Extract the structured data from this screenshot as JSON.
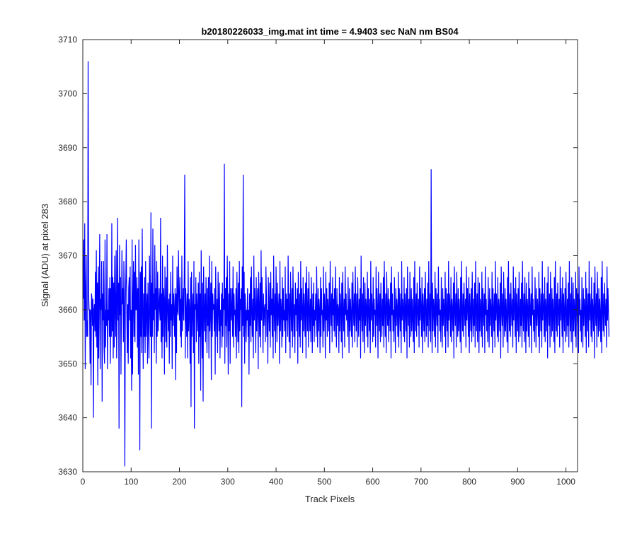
{
  "chart_data": {
    "type": "line",
    "title": "b20180226033_img.mat int time = 4.9403 sec  NaN nm BS04",
    "xlabel": "Track Pixels",
    "ylabel": "Signal (ADU) at pixel 283",
    "xlim": [
      0,
      1024
    ],
    "ylim": [
      3630,
      3710
    ],
    "xticks": [
      0,
      100,
      200,
      300,
      400,
      500,
      600,
      700,
      800,
      900,
      1000
    ],
    "yticks": [
      3630,
      3640,
      3650,
      3660,
      3670,
      3680,
      3690,
      3700,
      3710
    ],
    "grid": false,
    "series": [
      {
        "color": "#0000ff",
        "x_start": 1,
        "x_step": 1,
        "values": [
          3662,
          3673,
          3658,
          3676,
          3649,
          3663,
          3670,
          3655,
          3658,
          3655,
          3706,
          3663,
          3660,
          3660,
          3650,
          3660,
          3646,
          3663,
          3662,
          3657,
          3662,
          3640,
          3660,
          3661,
          3656,
          3667,
          3655,
          3671,
          3653,
          3665,
          3646,
          3668,
          3651,
          3664,
          3674,
          3649,
          3662,
          3660,
          3669,
          3643,
          3663,
          3658,
          3669,
          3653,
          3650,
          3673,
          3653,
          3660,
          3657,
          3674,
          3649,
          3660,
          3658,
          3664,
          3655,
          3666,
          3650,
          3664,
          3655,
          3676,
          3656,
          3666,
          3651,
          3665,
          3653,
          3670,
          3660,
          3655,
          3671,
          3651,
          3660,
          3677,
          3658,
          3665,
          3638,
          3672,
          3659,
          3666,
          3648,
          3660,
          3671,
          3661,
          3664,
          3654,
          3669,
          3662,
          3631,
          3660,
          3666,
          3673,
          3660,
          3652,
          3661,
          3650,
          3664,
          3666,
          3658,
          3668,
          3651,
          3660,
          3645,
          3673,
          3648,
          3661,
          3669,
          3655,
          3667,
          3654,
          3672,
          3660,
          3660,
          3666,
          3653,
          3664,
          3648,
          3673,
          3660,
          3634,
          3667,
          3655,
          3668,
          3652,
          3675,
          3660,
          3649,
          3663,
          3655,
          3666,
          3652,
          3669,
          3655,
          3660,
          3663,
          3650,
          3665,
          3657,
          3651,
          3670,
          3660,
          3655,
          3678,
          3638,
          3665,
          3655,
          3675,
          3658,
          3663,
          3652,
          3672,
          3660,
          3664,
          3650,
          3669,
          3655,
          3667,
          3656,
          3660,
          3664,
          3660,
          3658,
          3677,
          3654,
          3663,
          3651,
          3670,
          3655,
          3664,
          3662,
          3648,
          3668,
          3660,
          3654,
          3666,
          3653,
          3672,
          3660,
          3656,
          3662,
          3650,
          3663,
          3655,
          3667,
          3658,
          3661,
          3649,
          3670,
          3657,
          3663,
          3660,
          3655,
          3664,
          3647,
          3663,
          3652,
          3668,
          3660,
          3659,
          3671,
          3663,
          3658,
          3666,
          3655,
          3662,
          3653,
          3670,
          3656,
          3660,
          3664,
          3658,
          3667,
          3685,
          3651,
          3664,
          3660,
          3655,
          3663,
          3651,
          3669,
          3656,
          3662,
          3660,
          3650,
          3666,
          3642,
          3667,
          3655,
          3660,
          3663,
          3652,
          3669,
          3638,
          3661,
          3660,
          3666,
          3654,
          3663,
          3660,
          3656,
          3665,
          3650,
          3667,
          3655,
          3663,
          3645,
          3671,
          3659,
          3651,
          3665,
          3643,
          3668,
          3660,
          3656,
          3663,
          3654,
          3666,
          3660,
          3652,
          3664,
          3657,
          3666,
          3651,
          3670,
          3656,
          3660,
          3665,
          3647,
          3669,
          3655,
          3663,
          3660,
          3661,
          3656,
          3664,
          3648,
          3668,
          3660,
          3655,
          3662,
          3652,
          3667,
          3660,
          3656,
          3665,
          3651,
          3660,
          3657,
          3663,
          3653,
          3665,
          3655,
          3662,
          3660,
          3687,
          3650,
          3664,
          3657,
          3666,
          3653,
          3670,
          3660,
          3648,
          3663,
          3656,
          3669,
          3650,
          3664,
          3660,
          3658,
          3664,
          3655,
          3668,
          3653,
          3663,
          3659,
          3660,
          3655,
          3664,
          3651,
          3667,
          3660,
          3654,
          3665,
          3652,
          3669,
          3656,
          3662,
          3660,
          3664,
          3642,
          3668,
          3657,
          3685,
          3655,
          3667,
          3650,
          3663,
          3660,
          3654,
          3660,
          3658,
          3664,
          3655,
          3660,
          3648,
          3663,
          3657,
          3666,
          3654,
          3668,
          3660,
          3655,
          3662,
          3651,
          3670,
          3658,
          3664,
          3660,
          3652,
          3666,
          3656,
          3661,
          3664,
          3649,
          3667,
          3660,
          3655,
          3665,
          3653,
          3671,
          3658,
          3666,
          3660,
          3652,
          3663,
          3657,
          3660,
          3661,
          3654,
          3668,
          3663,
          3655,
          3660,
          3650,
          3666,
          3660,
          3656,
          3665,
          3653,
          3667,
          3659,
          3662,
          3655,
          3664,
          3651,
          3670,
          3660,
          3656,
          3663,
          3652,
          3668,
          3660,
          3654,
          3665,
          3657,
          3660,
          3663,
          3650,
          3669,
          3656,
          3662,
          3660,
          3653,
          3666,
          3655,
          3664,
          3658,
          3660,
          3656,
          3668,
          3652,
          3663,
          3658,
          3662,
          3655,
          3670,
          3660,
          3654,
          3663,
          3651,
          3667,
          3660,
          3656,
          3664,
          3653,
          3668,
          3660,
          3655,
          3661,
          3652,
          3665,
          3659,
          3662,
          3656,
          3664,
          3650,
          3667,
          3660,
          3655,
          3663,
          3653,
          3669,
          3658,
          3664,
          3660,
          3652,
          3666,
          3656,
          3663,
          3660,
          3655,
          3665,
          3651,
          3668,
          3660,
          3656,
          3664,
          3653,
          3667,
          3660,
          3656,
          3662,
          3654,
          3666,
          3660,
          3652,
          3663,
          3657,
          3665,
          3654,
          3660,
          3658,
          3663,
          3655,
          3668,
          3660,
          3653,
          3664,
          3656,
          3662,
          3660,
          3652,
          3666,
          3655,
          3664,
          3659,
          3660,
          3653,
          3668,
          3656,
          3663,
          3660,
          3651,
          3667,
          3658,
          3664,
          3655,
          3662,
          3660,
          3656,
          3665,
          3652,
          3669,
          3660,
          3657,
          3663,
          3654,
          3666,
          3659,
          3662,
          3656,
          3664,
          3655,
          3668,
          3660,
          3653,
          3664,
          3657,
          3661,
          3660,
          3652,
          3666,
          3656,
          3663,
          3660,
          3654,
          3665,
          3651,
          3667,
          3660,
          3656,
          3662,
          3653,
          3668,
          3659,
          3663,
          3658,
          3660,
          3655,
          3666,
          3660,
          3652,
          3664,
          3656,
          3662,
          3659,
          3655,
          3665,
          3653,
          3667,
          3660,
          3657,
          3663,
          3654,
          3668,
          3660,
          3656,
          3663,
          3653,
          3666,
          3660,
          3655,
          3662,
          3658,
          3664,
          3651,
          3670,
          3660,
          3656,
          3663,
          3654,
          3666,
          3660,
          3652,
          3665,
          3657,
          3662,
          3660,
          3655,
          3667,
          3653,
          3664,
          3660,
          3656,
          3662,
          3652,
          3669,
          3658,
          3663,
          3660,
          3654,
          3666,
          3655,
          3662,
          3659,
          3660,
          3653,
          3668,
          3657,
          3664,
          3660,
          3651,
          3667,
          3660,
          3656,
          3663,
          3654,
          3665,
          3660,
          3655,
          3662,
          3657,
          3666,
          3653,
          3669,
          3660,
          3655,
          3663,
          3652,
          3667,
          3660,
          3657,
          3664,
          3654,
          3662,
          3660,
          3656,
          3665,
          3651,
          3668,
          3659,
          3663,
          3656,
          3660,
          3654,
          3666,
          3660,
          3652,
          3664,
          3657,
          3662,
          3660,
          3655,
          3667,
          3653,
          3664,
          3660,
          3656,
          3663,
          3652,
          3669,
          3658,
          3662,
          3660,
          3655,
          3666,
          3654,
          3663,
          3660,
          3656,
          3664,
          3651,
          3668,
          3660,
          3657,
          3662,
          3653,
          3667,
          3660,
          3655,
          3664,
          3656,
          3662,
          3659,
          3654,
          3666,
          3652,
          3669,
          3660,
          3656,
          3663,
          3655,
          3665,
          3660,
          3657,
          3662,
          3653,
          3668,
          3658,
          3664,
          3660,
          3655,
          3666,
          3652,
          3663,
          3660,
          3656,
          3664,
          3654,
          3667,
          3660,
          3655,
          3662,
          3657,
          3665,
          3653,
          3669,
          3660,
          3656,
          3663,
          3654,
          3686,
          3660,
          3652,
          3665,
          3656,
          3662,
          3660,
          3655,
          3667,
          3653,
          3664,
          3660,
          3657,
          3663,
          3652,
          3668,
          3659,
          3662,
          3656,
          3660,
          3654,
          3666,
          3660,
          3653,
          3664,
          3657,
          3662,
          3660,
          3655,
          3667,
          3652,
          3664,
          3660,
          3656,
          3663,
          3653,
          3669,
          3658,
          3663,
          3660,
          3655,
          3666,
          3654,
          3662,
          3660,
          3656,
          3665,
          3651,
          3668,
          3660,
          3657,
          3663,
          3653,
          3667,
          3660,
          3655,
          3664,
          3656,
          3662,
          3659,
          3654,
          3666,
          3652,
          3669,
          3660,
          3656,
          3663,
          3655,
          3665,
          3660,
          3657,
          3662,
          3653,
          3668,
          3658,
          3664,
          3660,
          3655,
          3666,
          3652,
          3663,
          3660,
          3656,
          3664,
          3654,
          3667,
          3660,
          3655,
          3662,
          3657,
          3665,
          3653,
          3669,
          3660,
          3656,
          3663,
          3654,
          3666,
          3660,
          3652,
          3665,
          3656,
          3662,
          3660,
          3655,
          3667,
          3653,
          3664,
          3660,
          3657,
          3663,
          3652,
          3668,
          3659,
          3662,
          3656,
          3660,
          3654,
          3666,
          3660,
          3653,
          3664,
          3657,
          3662,
          3660,
          3655,
          3667,
          3652,
          3664,
          3660,
          3656,
          3663,
          3653,
          3669,
          3658,
          3663,
          3660,
          3655,
          3666,
          3654,
          3662,
          3660,
          3656,
          3665,
          3651,
          3668,
          3660,
          3657,
          3663,
          3653,
          3667,
          3660,
          3655,
          3664,
          3656,
          3662,
          3659,
          3654,
          3666,
          3652,
          3669,
          3660,
          3656,
          3663,
          3655,
          3665,
          3660,
          3657,
          3662,
          3653,
          3668,
          3658,
          3664,
          3660,
          3655,
          3666,
          3652,
          3663,
          3660,
          3656,
          3664,
          3654,
          3667,
          3660,
          3655,
          3662,
          3657,
          3665,
          3653,
          3669,
          3660,
          3656,
          3663,
          3654,
          3666,
          3660,
          3652,
          3665,
          3656,
          3662,
          3660,
          3655,
          3667,
          3653,
          3664,
          3660,
          3657,
          3663,
          3652,
          3668,
          3659,
          3662,
          3656,
          3660,
          3654,
          3666,
          3660,
          3653,
          3664,
          3657,
          3662,
          3660,
          3655,
          3667,
          3652,
          3664,
          3660,
          3656,
          3663,
          3653,
          3669,
          3658,
          3663,
          3660,
          3655,
          3666,
          3654,
          3662,
          3660,
          3656,
          3665,
          3651,
          3668,
          3660,
          3657,
          3663,
          3653,
          3667,
          3660,
          3655,
          3664,
          3656,
          3662,
          3659,
          3654,
          3666,
          3652,
          3669,
          3660,
          3656,
          3663,
          3655,
          3665,
          3660,
          3657,
          3662,
          3653,
          3668,
          3658,
          3664,
          3660,
          3655,
          3666,
          3652,
          3663,
          3660,
          3656,
          3664,
          3654,
          3667,
          3660,
          3655,
          3662,
          3657,
          3665,
          3653,
          3669,
          3660,
          3656,
          3663,
          3654,
          3666,
          3660,
          3652,
          3665,
          3656,
          3662,
          3660,
          3655,
          3667,
          3653,
          3664,
          3660,
          3657,
          3663,
          3652,
          3668,
          3659,
          3662,
          3656,
          3660,
          3654,
          3666,
          3660,
          3653,
          3664,
          3657,
          3662,
          3660,
          3655,
          3667,
          3652,
          3664,
          3660,
          3656,
          3663,
          3653,
          3669,
          3658,
          3663,
          3660,
          3655,
          3666,
          3654,
          3662,
          3660,
          3656,
          3665,
          3651,
          3668,
          3660,
          3657,
          3663,
          3653,
          3667,
          3660,
          3655,
          3664,
          3656,
          3662,
          3659,
          3654,
          3666,
          3652,
          3669,
          3660,
          3656,
          3663,
          3655,
          3665,
          3660,
          3657,
          3662,
          3653,
          3668,
          3658,
          3664,
          3660,
          3655
        ]
      }
    ]
  }
}
